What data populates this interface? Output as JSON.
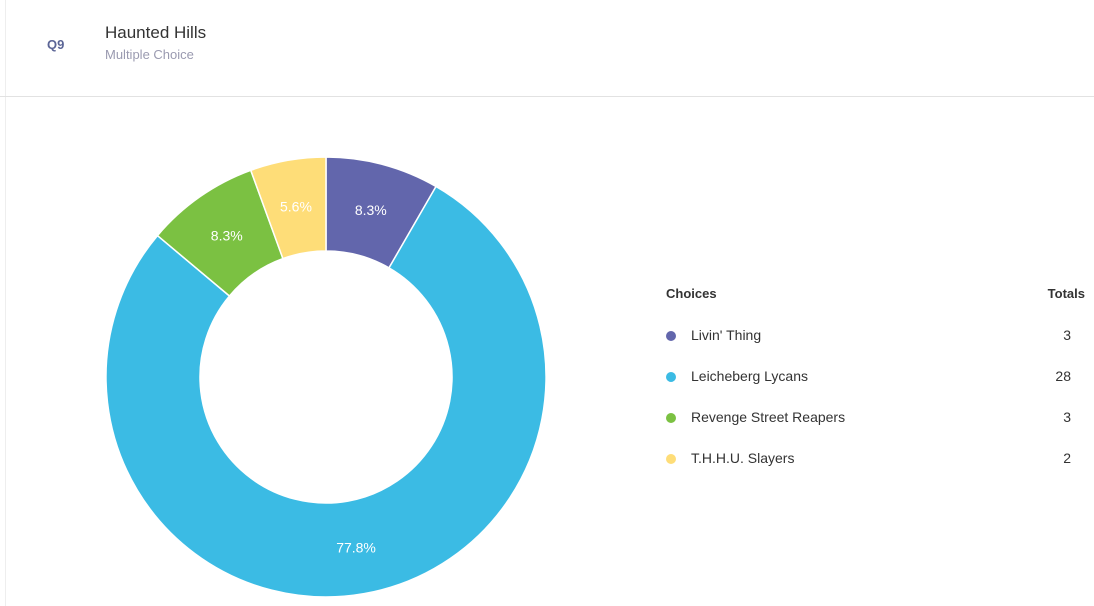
{
  "question": {
    "number": "Q9",
    "title": "Haunted Hills",
    "type": "Multiple Choice"
  },
  "legend": {
    "choices_header": "Choices",
    "totals_header": "Totals",
    "items": [
      {
        "label": "Livin' Thing",
        "total": "3"
      },
      {
        "label": "Leicheberg Lycans",
        "total": "28"
      },
      {
        "label": "Revenge Street Reapers",
        "total": "3"
      },
      {
        "label": "T.H.H.U. Slayers",
        "total": "2"
      }
    ]
  },
  "chart_data": {
    "type": "pie",
    "style": "donut",
    "categories": [
      "Livin' Thing",
      "Leicheberg Lycans",
      "Revenge Street Reapers",
      "T.H.H.U. Slayers"
    ],
    "values": [
      3,
      28,
      3,
      2
    ],
    "percent_labels": [
      "8.3%",
      "77.8%",
      "8.3%",
      "5.6%"
    ],
    "colors": [
      "#6266ac",
      "#3bbbe4",
      "#7bc142",
      "#fedd78"
    ],
    "legend_position": "right"
  }
}
